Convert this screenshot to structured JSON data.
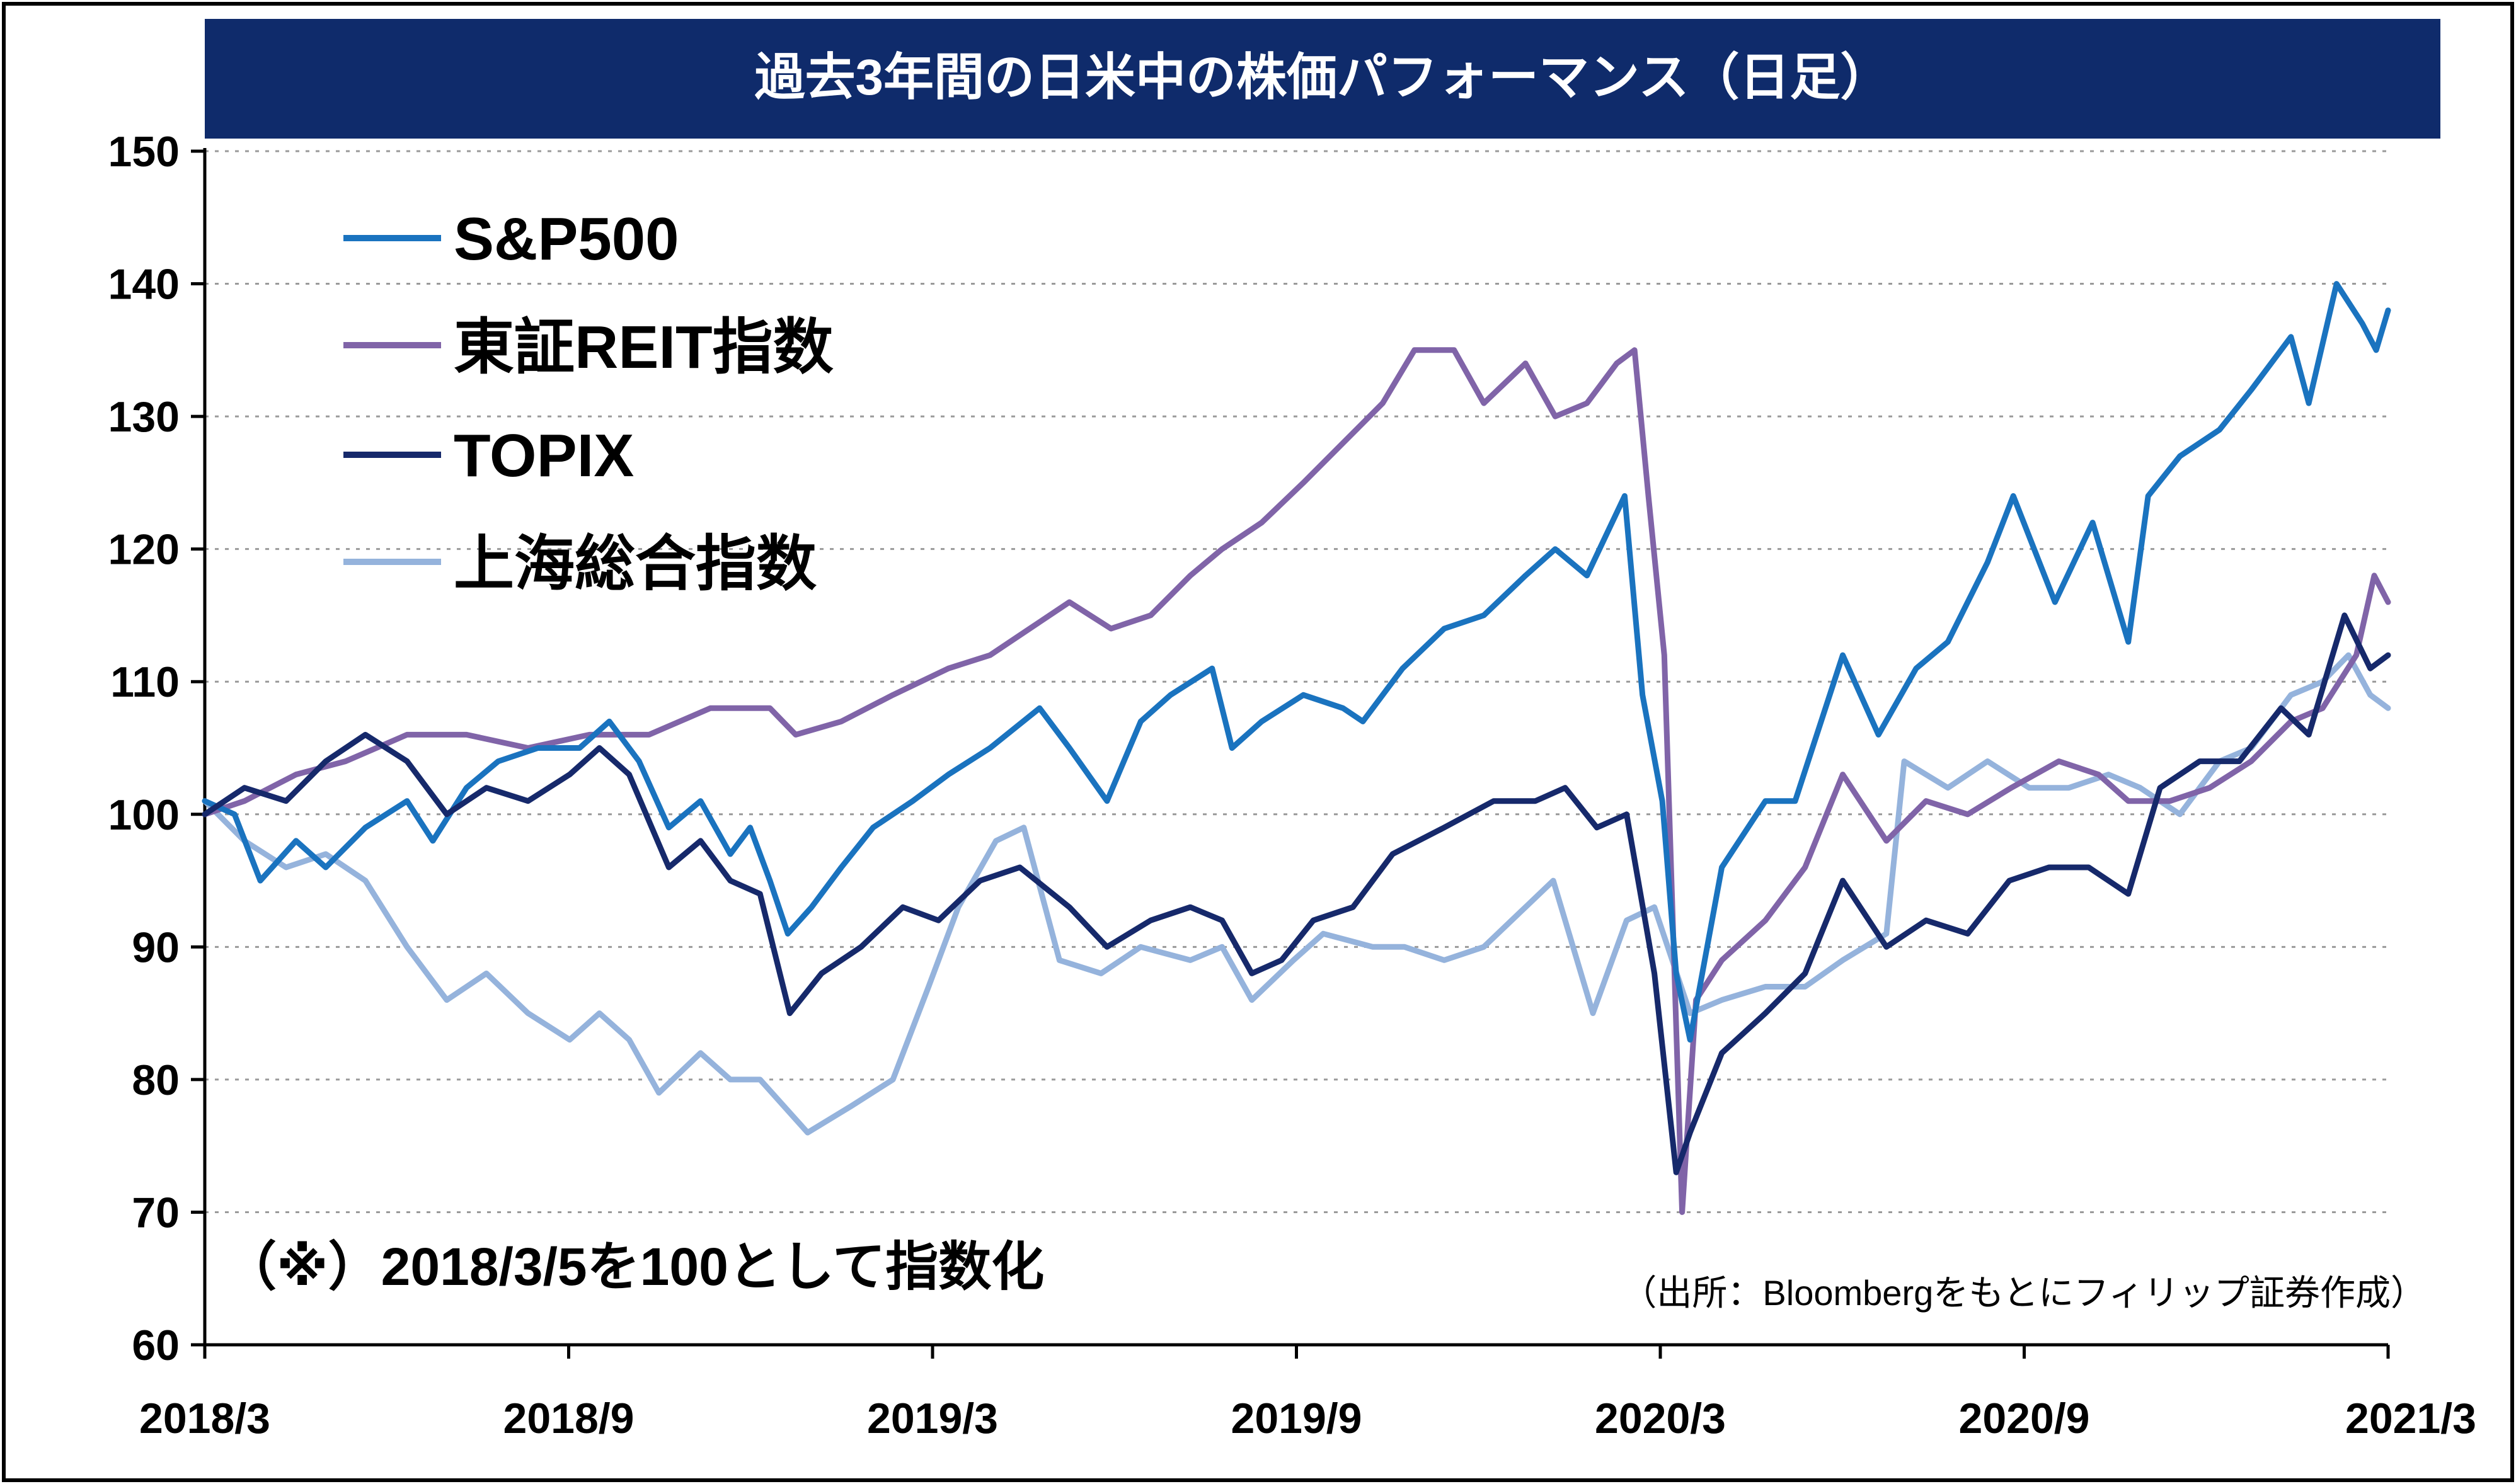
{
  "chart_data": {
    "type": "line",
    "title": "過去3年間の日米中の株価パフォーマンス（日足）",
    "note": "（※）2018/3/5を100として指数化",
    "source": "（出所：Bloombergをもとにフィリップ証券作成）",
    "xlabel": "",
    "ylabel": "",
    "ylim": [
      60,
      150
    ],
    "yticks": [
      60,
      70,
      80,
      90,
      100,
      110,
      120,
      130,
      140,
      150
    ],
    "xlim": [
      "2018-03-05",
      "2021-03-10"
    ],
    "xticks": [
      "2018/3",
      "2018/9",
      "2019/3",
      "2019/9",
      "2020/3",
      "2020/9",
      "2021/3"
    ],
    "grid": true,
    "legend_position": "top-left",
    "series": [
      {
        "name": "S&P500",
        "color": "#1a73bf",
        "points": [
          [
            "2018-03-05",
            101
          ],
          [
            "2018-03-20",
            100
          ],
          [
            "2018-04-02",
            95
          ],
          [
            "2018-04-20",
            98
          ],
          [
            "2018-05-05",
            96
          ],
          [
            "2018-05-25",
            99
          ],
          [
            "2018-06-15",
            101
          ],
          [
            "2018-06-28",
            98
          ],
          [
            "2018-07-15",
            102
          ],
          [
            "2018-07-31",
            104
          ],
          [
            "2018-08-20",
            105
          ],
          [
            "2018-09-10",
            105
          ],
          [
            "2018-09-25",
            107
          ],
          [
            "2018-10-10",
            104
          ],
          [
            "2018-10-25",
            99
          ],
          [
            "2018-11-10",
            101
          ],
          [
            "2018-11-25",
            97
          ],
          [
            "2018-12-05",
            99
          ],
          [
            "2018-12-15",
            95
          ],
          [
            "2018-12-24",
            91
          ],
          [
            "2019-01-05",
            93
          ],
          [
            "2019-01-20",
            96
          ],
          [
            "2019-02-05",
            99
          ],
          [
            "2019-02-25",
            101
          ],
          [
            "2019-03-15",
            103
          ],
          [
            "2019-04-05",
            105
          ],
          [
            "2019-04-30",
            108
          ],
          [
            "2019-05-15",
            105
          ],
          [
            "2019-06-03",
            101
          ],
          [
            "2019-06-20",
            107
          ],
          [
            "2019-07-05",
            109
          ],
          [
            "2019-07-26",
            111
          ],
          [
            "2019-08-05",
            105
          ],
          [
            "2019-08-20",
            107
          ],
          [
            "2019-09-10",
            109
          ],
          [
            "2019-09-30",
            108
          ],
          [
            "2019-10-10",
            107
          ],
          [
            "2019-10-30",
            111
          ],
          [
            "2019-11-20",
            114
          ],
          [
            "2019-12-10",
            115
          ],
          [
            "2019-12-31",
            118
          ],
          [
            "2020-01-15",
            120
          ],
          [
            "2020-01-31",
            118
          ],
          [
            "2020-02-19",
            124
          ],
          [
            "2020-02-28",
            109
          ],
          [
            "2020-03-09",
            101
          ],
          [
            "2020-03-16",
            88
          ],
          [
            "2020-03-23",
            83
          ],
          [
            "2020-04-08",
            96
          ],
          [
            "2020-04-30",
            101
          ],
          [
            "2020-05-15",
            101
          ],
          [
            "2020-06-08",
            112
          ],
          [
            "2020-06-26",
            106
          ],
          [
            "2020-07-15",
            111
          ],
          [
            "2020-07-31",
            113
          ],
          [
            "2020-08-20",
            119
          ],
          [
            "2020-09-02",
            124
          ],
          [
            "2020-09-23",
            116
          ],
          [
            "2020-10-12",
            122
          ],
          [
            "2020-10-30",
            113
          ],
          [
            "2020-11-09",
            124
          ],
          [
            "2020-11-25",
            127
          ],
          [
            "2020-12-15",
            129
          ],
          [
            "2020-12-31",
            132
          ],
          [
            "2021-01-20",
            136
          ],
          [
            "2021-01-29",
            131
          ],
          [
            "2021-02-12",
            140
          ],
          [
            "2021-02-25",
            137
          ],
          [
            "2021-03-04",
            135
          ],
          [
            "2021-03-10",
            138
          ]
        ]
      },
      {
        "name": "東証REIT指数",
        "color": "#8064a8",
        "points": [
          [
            "2018-03-05",
            100
          ],
          [
            "2018-03-25",
            101
          ],
          [
            "2018-04-20",
            103
          ],
          [
            "2018-05-15",
            104
          ],
          [
            "2018-06-15",
            106
          ],
          [
            "2018-07-15",
            106
          ],
          [
            "2018-08-15",
            105
          ],
          [
            "2018-09-15",
            106
          ],
          [
            "2018-10-15",
            106
          ],
          [
            "2018-11-15",
            108
          ],
          [
            "2018-12-15",
            108
          ],
          [
            "2018-12-28",
            106
          ],
          [
            "2019-01-20",
            107
          ],
          [
            "2019-02-15",
            109
          ],
          [
            "2019-03-15",
            111
          ],
          [
            "2019-04-05",
            112
          ],
          [
            "2019-04-25",
            114
          ],
          [
            "2019-05-15",
            116
          ],
          [
            "2019-06-05",
            114
          ],
          [
            "2019-06-25",
            115
          ],
          [
            "2019-07-15",
            118
          ],
          [
            "2019-07-31",
            120
          ],
          [
            "2019-08-20",
            122
          ],
          [
            "2019-09-10",
            125
          ],
          [
            "2019-09-30",
            128
          ],
          [
            "2019-10-20",
            131
          ],
          [
            "2019-11-05",
            135
          ],
          [
            "2019-11-25",
            135
          ],
          [
            "2019-12-10",
            131
          ],
          [
            "2019-12-31",
            134
          ],
          [
            "2020-01-15",
            130
          ],
          [
            "2020-01-31",
            131
          ],
          [
            "2020-02-15",
            134
          ],
          [
            "2020-02-24",
            135
          ],
          [
            "2020-03-02",
            124
          ],
          [
            "2020-03-10",
            112
          ],
          [
            "2020-03-19",
            70
          ],
          [
            "2020-03-26",
            86
          ],
          [
            "2020-04-08",
            89
          ],
          [
            "2020-04-30",
            92
          ],
          [
            "2020-05-20",
            96
          ],
          [
            "2020-06-08",
            103
          ],
          [
            "2020-06-30",
            98
          ],
          [
            "2020-07-20",
            101
          ],
          [
            "2020-08-10",
            100
          ],
          [
            "2020-09-01",
            102
          ],
          [
            "2020-09-25",
            104
          ],
          [
            "2020-10-15",
            103
          ],
          [
            "2020-10-30",
            101
          ],
          [
            "2020-11-20",
            101
          ],
          [
            "2020-12-10",
            102
          ],
          [
            "2020-12-31",
            104
          ],
          [
            "2021-01-20",
            107
          ],
          [
            "2021-02-05",
            108
          ],
          [
            "2021-02-22",
            112
          ],
          [
            "2021-03-03",
            118
          ],
          [
            "2021-03-10",
            116
          ]
        ]
      },
      {
        "name": "TOPIX",
        "color": "#16296b",
        "points": [
          [
            "2018-03-05",
            100
          ],
          [
            "2018-03-25",
            102
          ],
          [
            "2018-04-15",
            101
          ],
          [
            "2018-05-05",
            104
          ],
          [
            "2018-05-25",
            106
          ],
          [
            "2018-06-15",
            104
          ],
          [
            "2018-07-05",
            100
          ],
          [
            "2018-07-25",
            102
          ],
          [
            "2018-08-15",
            101
          ],
          [
            "2018-09-05",
            103
          ],
          [
            "2018-09-20",
            105
          ],
          [
            "2018-10-05",
            103
          ],
          [
            "2018-10-25",
            96
          ],
          [
            "2018-11-10",
            98
          ],
          [
            "2018-11-25",
            95
          ],
          [
            "2018-12-10",
            94
          ],
          [
            "2018-12-25",
            85
          ],
          [
            "2019-01-10",
            88
          ],
          [
            "2019-01-30",
            90
          ],
          [
            "2019-02-20",
            93
          ],
          [
            "2019-03-10",
            92
          ],
          [
            "2019-03-31",
            95
          ],
          [
            "2019-04-20",
            96
          ],
          [
            "2019-05-15",
            93
          ],
          [
            "2019-06-03",
            90
          ],
          [
            "2019-06-25",
            92
          ],
          [
            "2019-07-15",
            93
          ],
          [
            "2019-07-31",
            92
          ],
          [
            "2019-08-15",
            88
          ],
          [
            "2019-08-30",
            89
          ],
          [
            "2019-09-15",
            92
          ],
          [
            "2019-10-05",
            93
          ],
          [
            "2019-10-25",
            97
          ],
          [
            "2019-11-20",
            99
          ],
          [
            "2019-12-15",
            101
          ],
          [
            "2020-01-05",
            101
          ],
          [
            "2020-01-20",
            102
          ],
          [
            "2020-02-05",
            99
          ],
          [
            "2020-02-20",
            100
          ],
          [
            "2020-03-05",
            88
          ],
          [
            "2020-03-16",
            73
          ],
          [
            "2020-03-23",
            76
          ],
          [
            "2020-04-08",
            82
          ],
          [
            "2020-04-30",
            85
          ],
          [
            "2020-05-20",
            88
          ],
          [
            "2020-06-08",
            95
          ],
          [
            "2020-06-30",
            90
          ],
          [
            "2020-07-20",
            92
          ],
          [
            "2020-08-10",
            91
          ],
          [
            "2020-08-31",
            95
          ],
          [
            "2020-09-20",
            96
          ],
          [
            "2020-10-10",
            96
          ],
          [
            "2020-10-30",
            94
          ],
          [
            "2020-11-15",
            102
          ],
          [
            "2020-12-05",
            104
          ],
          [
            "2020-12-25",
            104
          ],
          [
            "2021-01-15",
            108
          ],
          [
            "2021-01-29",
            106
          ],
          [
            "2021-02-16",
            115
          ],
          [
            "2021-03-01",
            111
          ],
          [
            "2021-03-10",
            112
          ]
        ]
      },
      {
        "name": "上海総合指数",
        "color": "#95b3dc",
        "points": [
          [
            "2018-03-05",
            101
          ],
          [
            "2018-03-25",
            98
          ],
          [
            "2018-04-15",
            96
          ],
          [
            "2018-05-05",
            97
          ],
          [
            "2018-05-25",
            95
          ],
          [
            "2018-06-15",
            90
          ],
          [
            "2018-07-05",
            86
          ],
          [
            "2018-07-25",
            88
          ],
          [
            "2018-08-15",
            85
          ],
          [
            "2018-09-05",
            83
          ],
          [
            "2018-09-20",
            85
          ],
          [
            "2018-10-05",
            83
          ],
          [
            "2018-10-20",
            79
          ],
          [
            "2018-11-10",
            82
          ],
          [
            "2018-11-25",
            80
          ],
          [
            "2018-12-10",
            80
          ],
          [
            "2019-01-03",
            76
          ],
          [
            "2019-01-25",
            78
          ],
          [
            "2019-02-15",
            80
          ],
          [
            "2019-03-05",
            87
          ],
          [
            "2019-03-20",
            93
          ],
          [
            "2019-04-08",
            98
          ],
          [
            "2019-04-22",
            99
          ],
          [
            "2019-05-10",
            89
          ],
          [
            "2019-05-31",
            88
          ],
          [
            "2019-06-20",
            90
          ],
          [
            "2019-07-15",
            89
          ],
          [
            "2019-07-31",
            90
          ],
          [
            "2019-08-15",
            86
          ],
          [
            "2019-09-05",
            89
          ],
          [
            "2019-09-20",
            91
          ],
          [
            "2019-10-15",
            90
          ],
          [
            "2019-10-31",
            90
          ],
          [
            "2019-11-20",
            89
          ],
          [
            "2019-12-10",
            90
          ],
          [
            "2019-12-31",
            93
          ],
          [
            "2020-01-14",
            95
          ],
          [
            "2020-02-03",
            85
          ],
          [
            "2020-02-20",
            92
          ],
          [
            "2020-03-05",
            93
          ],
          [
            "2020-03-23",
            85
          ],
          [
            "2020-04-08",
            86
          ],
          [
            "2020-04-30",
            87
          ],
          [
            "2020-05-20",
            87
          ],
          [
            "2020-06-08",
            89
          ],
          [
            "2020-06-30",
            91
          ],
          [
            "2020-07-09",
            104
          ],
          [
            "2020-07-31",
            102
          ],
          [
            "2020-08-20",
            104
          ],
          [
            "2020-09-10",
            102
          ],
          [
            "2020-09-30",
            102
          ],
          [
            "2020-10-20",
            103
          ],
          [
            "2020-11-05",
            102
          ],
          [
            "2020-11-25",
            100
          ],
          [
            "2020-12-15",
            104
          ],
          [
            "2020-12-31",
            105
          ],
          [
            "2021-01-20",
            109
          ],
          [
            "2021-02-05",
            110
          ],
          [
            "2021-02-18",
            112
          ],
          [
            "2021-03-01",
            109
          ],
          [
            "2021-03-10",
            108
          ]
        ]
      }
    ]
  }
}
